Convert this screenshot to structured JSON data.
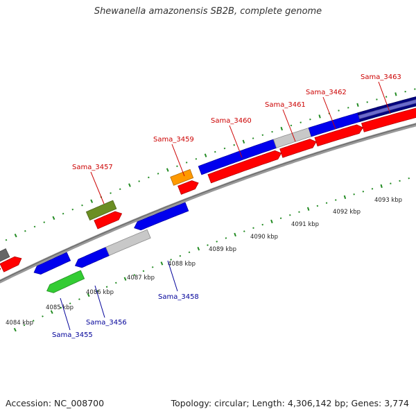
{
  "title": "Shewanella amazonensis SB2B, complete genome",
  "footer": {
    "accession": "Accession: NC_008700",
    "summary": "Topology: circular; Length: 4,306,142 bp; Genes: 3,774"
  },
  "colors": {
    "forward_label": "#cc0000",
    "reverse_label": "#000099",
    "backbone": "#888888",
    "tick": "#228b22",
    "red": "#ff0000",
    "blue": "#0000ee",
    "grey": "#c8c8c8",
    "darkgrey": "#666666",
    "olive": "#6b8e23",
    "orange": "#ff9900",
    "green": "#33cc33",
    "navy": "#000080",
    "lightblue": "#6a6acd"
  },
  "scale_labels": [
    "4084 kbp",
    "4085 kbp",
    "4086 kbp",
    "4087 kbp",
    "4088 kbp",
    "4089 kbp",
    "4090 kbp",
    "4091 kbp",
    "4092 kbp",
    "4093 kbp"
  ],
  "gene_labels": [
    {
      "text": "Sama_3457",
      "strand": "forward"
    },
    {
      "text": "Sama_3459",
      "strand": "forward"
    },
    {
      "text": "Sama_3460",
      "strand": "forward"
    },
    {
      "text": "Sama_3461",
      "strand": "forward"
    },
    {
      "text": "Sama_3462",
      "strand": "forward"
    },
    {
      "text": "Sama_3463",
      "strand": "forward"
    },
    {
      "text": "Sama_3455",
      "strand": "reverse"
    },
    {
      "text": "Sama_3456",
      "strand": "reverse"
    },
    {
      "text": "Sama_3458",
      "strand": "reverse"
    }
  ],
  "features": [
    {
      "track": 2,
      "start": -80,
      "end": 25,
      "color": "darkgrey"
    },
    {
      "track": 2,
      "start": 140,
      "end": 178,
      "color": "olive"
    },
    {
      "track": 2,
      "start": 260,
      "end": 288,
      "color": "orange"
    },
    {
      "track": 2,
      "start": 300,
      "end": 407,
      "color": "blue"
    },
    {
      "track": 2,
      "start": 407,
      "end": 457,
      "color": "grey"
    },
    {
      "track": 2,
      "start": 457,
      "end": 527,
      "color": "blue"
    },
    {
      "track": 2,
      "start": 527,
      "end": 660,
      "color": "navy"
    },
    {
      "track": 2,
      "start": 527,
      "end": 660,
      "color": "lightblue",
      "thin": true
    },
    {
      "track": 1,
      "start": -80,
      "end": 8,
      "color": "red",
      "arrow": true
    },
    {
      "track": 1,
      "start": 10,
      "end": 38,
      "color": "red",
      "arrow": true
    },
    {
      "track": 1,
      "start": 145,
      "end": 182,
      "color": "red",
      "arrow": true
    },
    {
      "track": 1,
      "start": 265,
      "end": 292,
      "color": "red",
      "arrow": true
    },
    {
      "track": 1,
      "start": 308,
      "end": 411,
      "color": "red",
      "arrow": true
    },
    {
      "track": 1,
      "start": 411,
      "end": 461,
      "color": "red",
      "arrow": true
    },
    {
      "track": 1,
      "start": 461,
      "end": 528,
      "color": "red",
      "arrow": true
    },
    {
      "track": 1,
      "start": 528,
      "end": 660,
      "color": "red",
      "arrow": true
    },
    {
      "track": -1,
      "start": 45,
      "end": 95,
      "color": "blue",
      "arrow": true
    },
    {
      "track": -1,
      "start": 190,
      "end": 266,
      "color": "blue",
      "arrow": true
    },
    {
      "track": -2,
      "start": 98,
      "end": 145,
      "color": "blue",
      "arrow": true
    },
    {
      "track": -2,
      "start": 145,
      "end": 205,
      "color": "grey"
    },
    {
      "track": -3,
      "start": 50,
      "end": 102,
      "color": "green",
      "arrow": true
    }
  ]
}
